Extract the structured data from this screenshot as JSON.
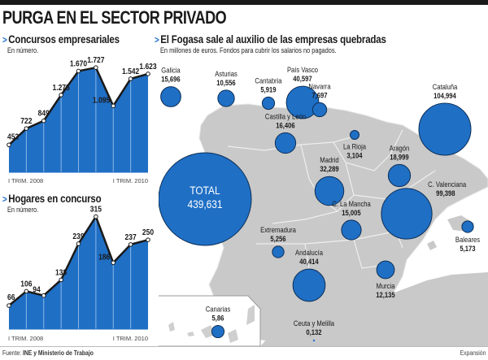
{
  "header": {
    "title": "PURGA EN EL SECTOR PRIVADO"
  },
  "colors": {
    "area_blue": "#1f6fc5",
    "line_black": "#1a1a1a",
    "map_gray": "#c9c9c9",
    "bubble_blue": "#1f6fc5"
  },
  "chart_data": [
    {
      "type": "area",
      "title": "Concursos empresariales",
      "subtitle": "En número.",
      "categories": [
        "I TRIM. 2008",
        "II TRIM. 2008",
        "III TRIM. 2008",
        "IV TRIM. 2008",
        "I TRIM. 2009",
        "II TRIM. 2009",
        "III TRIM. 2009",
        "IV TRIM. 2009",
        "I TRIM. 2010"
      ],
      "values": [
        452,
        722,
        849,
        1275,
        1670,
        1727,
        1095,
        1542,
        1623
      ],
      "labels": [
        "452",
        "722",
        "849",
        "1.275",
        "1.670",
        "1.727",
        "1.095",
        "1.542",
        "1.623"
      ],
      "x_tick_labels": {
        "start": "I TRIM. 2008",
        "end": "I TRIM. 2010"
      },
      "ylim": [
        0,
        1850
      ],
      "grid": false
    },
    {
      "type": "area",
      "title": "Hogares en concurso",
      "subtitle": "En número.",
      "categories": [
        "I TRIM. 2008",
        "II TRIM. 2008",
        "III TRIM. 2008",
        "IV TRIM. 2008",
        "I TRIM. 2009",
        "II TRIM. 2009",
        "III TRIM. 2009",
        "IV TRIM. 2009",
        "I TRIM. 2010"
      ],
      "values": [
        66,
        106,
        94,
        138,
        239,
        315,
        186,
        237,
        250
      ],
      "labels": [
        "66",
        "106",
        "94",
        "138",
        "239",
        "315",
        "186",
        "237",
        "250"
      ],
      "x_tick_labels": {
        "start": "I TRIM. 2008",
        "end": "I TRIM. 2010"
      },
      "ylim": [
        0,
        330
      ],
      "grid": false
    },
    {
      "type": "bubble-map",
      "title": "El Fogasa sale al auxilio de las empresas quebradas",
      "subtitle": "En millones de euros. Fondos para cubrir los salarios no pagados.",
      "total": {
        "label": "TOTAL",
        "value": 439.631,
        "display": "439,631"
      },
      "regions": [
        {
          "name": "Galicia",
          "value": 15.696,
          "display": "15,696"
        },
        {
          "name": "Asturias",
          "value": 10.556,
          "display": "10,556"
        },
        {
          "name": "Cantabria",
          "value": 5.919,
          "display": "5,919"
        },
        {
          "name": "País Vasco",
          "value": 40.597,
          "display": "40,597"
        },
        {
          "name": "Navarra",
          "value": 7.697,
          "display": "7,697"
        },
        {
          "name": "Cataluña",
          "value": 104.994,
          "display": "104,994"
        },
        {
          "name": "Castilla y León",
          "value": 16.406,
          "display": "16,406"
        },
        {
          "name": "La Rioja",
          "value": 3.104,
          "display": "3,104"
        },
        {
          "name": "Aragón",
          "value": 18.999,
          "display": "18,999"
        },
        {
          "name": "Madrid",
          "value": 32.289,
          "display": "32,289"
        },
        {
          "name": "C. Valenciana",
          "value": 99.398,
          "display": "99,398"
        },
        {
          "name": "Extremadura",
          "value": 5.256,
          "display": "5,256"
        },
        {
          "name": "C. La Mancha",
          "value": 15.005,
          "display": "15,005"
        },
        {
          "name": "Baleares",
          "value": 5.173,
          "display": "5,173"
        },
        {
          "name": "Andalucía",
          "value": 40.414,
          "display": "40,414"
        },
        {
          "name": "Murcia",
          "value": 12.135,
          "display": "12,135"
        },
        {
          "name": "Canarias",
          "value": 5.86,
          "display": "5,86"
        },
        {
          "name": "Ceuta y Melilla",
          "value": 0.132,
          "display": "0,132"
        }
      ]
    }
  ],
  "footer": {
    "source_prefix": "Fuente:",
    "source": "INE y Ministerio de Trabajo",
    "brand": "Expansión"
  }
}
